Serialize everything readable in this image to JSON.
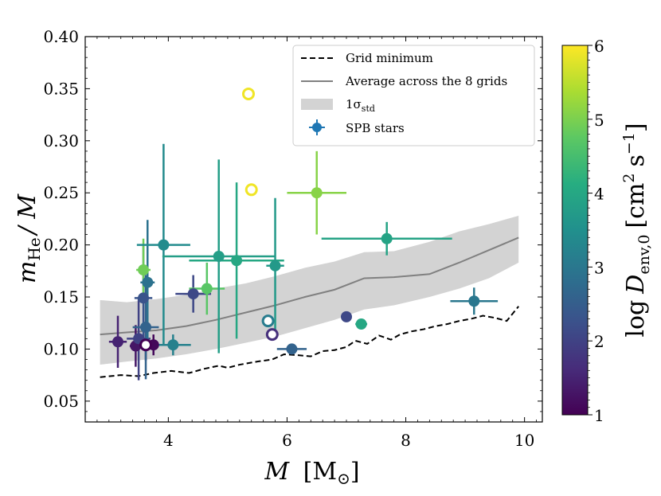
{
  "chart_data": {
    "type": "scatter",
    "xlabel_main": "M",
    "xlabel_unit": "[M",
    "xlabel_sun": "⊙",
    "xlabel_close": "]",
    "ylabel_m": "m",
    "ylabel_sub": "He",
    "ylabel_tail": "/ M",
    "xlim": [
      2.6,
      10.3
    ],
    "ylim": [
      0.03,
      0.4
    ],
    "xticks": [
      4,
      6,
      8,
      10
    ],
    "yticks": [
      0.05,
      0.1,
      0.15,
      0.2,
      0.25,
      0.3,
      0.35,
      0.4
    ],
    "ytick_labels": [
      "0.05",
      "0.10",
      "0.15",
      "0.20",
      "0.25",
      "0.30",
      "0.35",
      "0.40"
    ],
    "legend": [
      {
        "kind": "dashed",
        "label": "Grid minimum"
      },
      {
        "kind": "line",
        "label": "Average across the 8 grids"
      },
      {
        "kind": "band",
        "label_main": "1σ",
        "label_sub": "std"
      },
      {
        "kind": "point",
        "label": "SPB stars"
      }
    ],
    "grid_minimum": {
      "x": [
        2.85,
        3.2,
        3.5,
        3.75,
        4.05,
        4.35,
        4.6,
        4.85,
        5.0,
        5.2,
        5.5,
        5.75,
        5.95,
        6.2,
        6.4,
        6.6,
        6.8,
        7.0,
        7.15,
        7.35,
        7.55,
        7.75,
        7.9,
        8.1,
        8.3,
        8.5,
        8.7,
        8.9,
        9.1,
        9.3,
        9.5,
        9.7,
        9.9
      ],
      "y": [
        0.073,
        0.075,
        0.074,
        0.077,
        0.079,
        0.077,
        0.081,
        0.084,
        0.082,
        0.085,
        0.088,
        0.09,
        0.095,
        0.094,
        0.093,
        0.098,
        0.099,
        0.102,
        0.108,
        0.105,
        0.113,
        0.109,
        0.114,
        0.117,
        0.119,
        0.122,
        0.124,
        0.127,
        0.129,
        0.132,
        0.13,
        0.127,
        0.141
      ]
    },
    "average": {
      "x": [
        2.85,
        3.3,
        3.8,
        4.3,
        4.8,
        5.3,
        5.8,
        6.3,
        6.8,
        7.3,
        7.8,
        8.4,
        8.9,
        9.4,
        9.9
      ],
      "y": [
        0.114,
        0.116,
        0.118,
        0.122,
        0.128,
        0.135,
        0.142,
        0.15,
        0.157,
        0.168,
        0.169,
        0.172,
        0.183,
        0.195,
        0.207
      ]
    },
    "std_band": {
      "x": [
        2.85,
        3.3,
        3.8,
        4.3,
        4.8,
        5.3,
        5.8,
        6.3,
        6.8,
        7.3,
        7.8,
        8.4,
        8.9,
        9.4,
        9.9
      ],
      "upper": [
        0.147,
        0.145,
        0.148,
        0.152,
        0.158,
        0.163,
        0.17,
        0.178,
        0.184,
        0.193,
        0.194,
        0.203,
        0.213,
        0.22,
        0.228
      ],
      "lower": [
        0.085,
        0.088,
        0.091,
        0.095,
        0.1,
        0.106,
        0.112,
        0.12,
        0.128,
        0.138,
        0.142,
        0.15,
        0.158,
        0.168,
        0.183
      ]
    },
    "spb_stars": [
      {
        "x": 3.15,
        "y": 0.107,
        "xerr": 0.15,
        "yerr": 0.025,
        "logD": 1.5
      },
      {
        "x": 3.45,
        "y": 0.103,
        "xerr": 0.1,
        "yerr": 0.02,
        "logD": 1.3
      },
      {
        "x": 3.5,
        "y": 0.11,
        "xerr": 0.2,
        "yerr": 0.04,
        "logD": 2.0
      },
      {
        "x": 3.62,
        "y": 0.104,
        "xerr": 0.15,
        "yerr": 0.015,
        "logD": 1.0
      },
      {
        "x": 3.75,
        "y": 0.104,
        "xerr": 0.1,
        "yerr": 0.01,
        "logD": 1.1
      },
      {
        "x": 3.62,
        "y": 0.121,
        "xerr": 0.22,
        "yerr": 0.05,
        "logD": 2.6
      },
      {
        "x": 3.58,
        "y": 0.149,
        "xerr": 0.15,
        "yerr": 0.05,
        "logD": 2.3
      },
      {
        "x": 3.65,
        "y": 0.164,
        "xerr": 0.12,
        "yerr": 0.06,
        "logD": 2.9
      },
      {
        "x": 3.58,
        "y": 0.176,
        "xerr": 0.12,
        "yerr": 0.03,
        "logD": 4.9
      },
      {
        "x": 3.92,
        "y": 0.2,
        "xerr": 0.45,
        "yerr": 0.097,
        "logD": 3.4
      },
      {
        "x": 4.08,
        "y": 0.104,
        "xerr": 0.3,
        "yerr": 0.01,
        "logD": 3.2
      },
      {
        "x": 4.42,
        "y": 0.153,
        "xerr": 0.3,
        "yerr": 0.018,
        "logD": 2.1
      },
      {
        "x": 4.65,
        "y": 0.158,
        "xerr": 0.3,
        "yerr": 0.025,
        "logD": 4.7
      },
      {
        "x": 4.85,
        "y": 0.189,
        "xerr": 0.95,
        "yerr": 0.093,
        "logD": 3.8
      },
      {
        "x": 5.15,
        "y": 0.185,
        "xerr": 0.8,
        "yerr": 0.075,
        "logD": 4.0
      },
      {
        "x": 5.8,
        "y": 0.18,
        "xerr": 0.15,
        "yerr": 0.065,
        "logD": 3.7
      },
      {
        "x": 6.08,
        "y": 0.1,
        "xerr": 0.25,
        "yerr": 0.004,
        "logD": 2.6
      },
      {
        "x": 6.5,
        "y": 0.25,
        "xerr": 0.5,
        "yerr": 0.04,
        "logD": 5.1
      },
      {
        "x": 7.0,
        "y": 0.131,
        "xerr": 0.05,
        "yerr": 0.005,
        "logD": 2.1
      },
      {
        "x": 7.25,
        "y": 0.124,
        "xerr": 0.1,
        "yerr": 0.003,
        "logD": 4.0
      },
      {
        "x": 7.68,
        "y": 0.206,
        "xerr": 1.1,
        "yerr": 0.016,
        "logD": 3.9
      },
      {
        "x": 9.15,
        "y": 0.146,
        "xerr": 0.4,
        "yerr": 0.013,
        "logD": 3.0
      }
    ],
    "open_points": [
      {
        "x": 5.35,
        "y": 0.345,
        "logD": 5.9
      },
      {
        "x": 5.4,
        "y": 0.253,
        "logD": 5.9
      },
      {
        "x": 5.68,
        "y": 0.127,
        "logD": 3.1
      },
      {
        "x": 5.75,
        "y": 0.114,
        "logD": 1.7
      },
      {
        "x": 3.62,
        "y": 0.104,
        "logD": 1.0
      }
    ],
    "colorbar": {
      "colormap": "viridis",
      "range": [
        1,
        6
      ],
      "ticks": [
        1,
        2,
        3,
        4,
        5,
        6
      ],
      "tick_labels": [
        "1",
        "2",
        "3",
        "4",
        "5",
        "6"
      ],
      "label_log": "log",
      "label_D": "D",
      "label_sub": "env,0",
      "label_units": "[cm",
      "label_units_sup": "2",
      "label_units_s": "s",
      "label_units_sup2": "−1",
      "label_units_close": "]"
    }
  },
  "colors": {
    "grid_minimum": "#000000",
    "average": "#808080",
    "std_band": "#d3d3d3",
    "legend_marker": "#1f77b4"
  }
}
